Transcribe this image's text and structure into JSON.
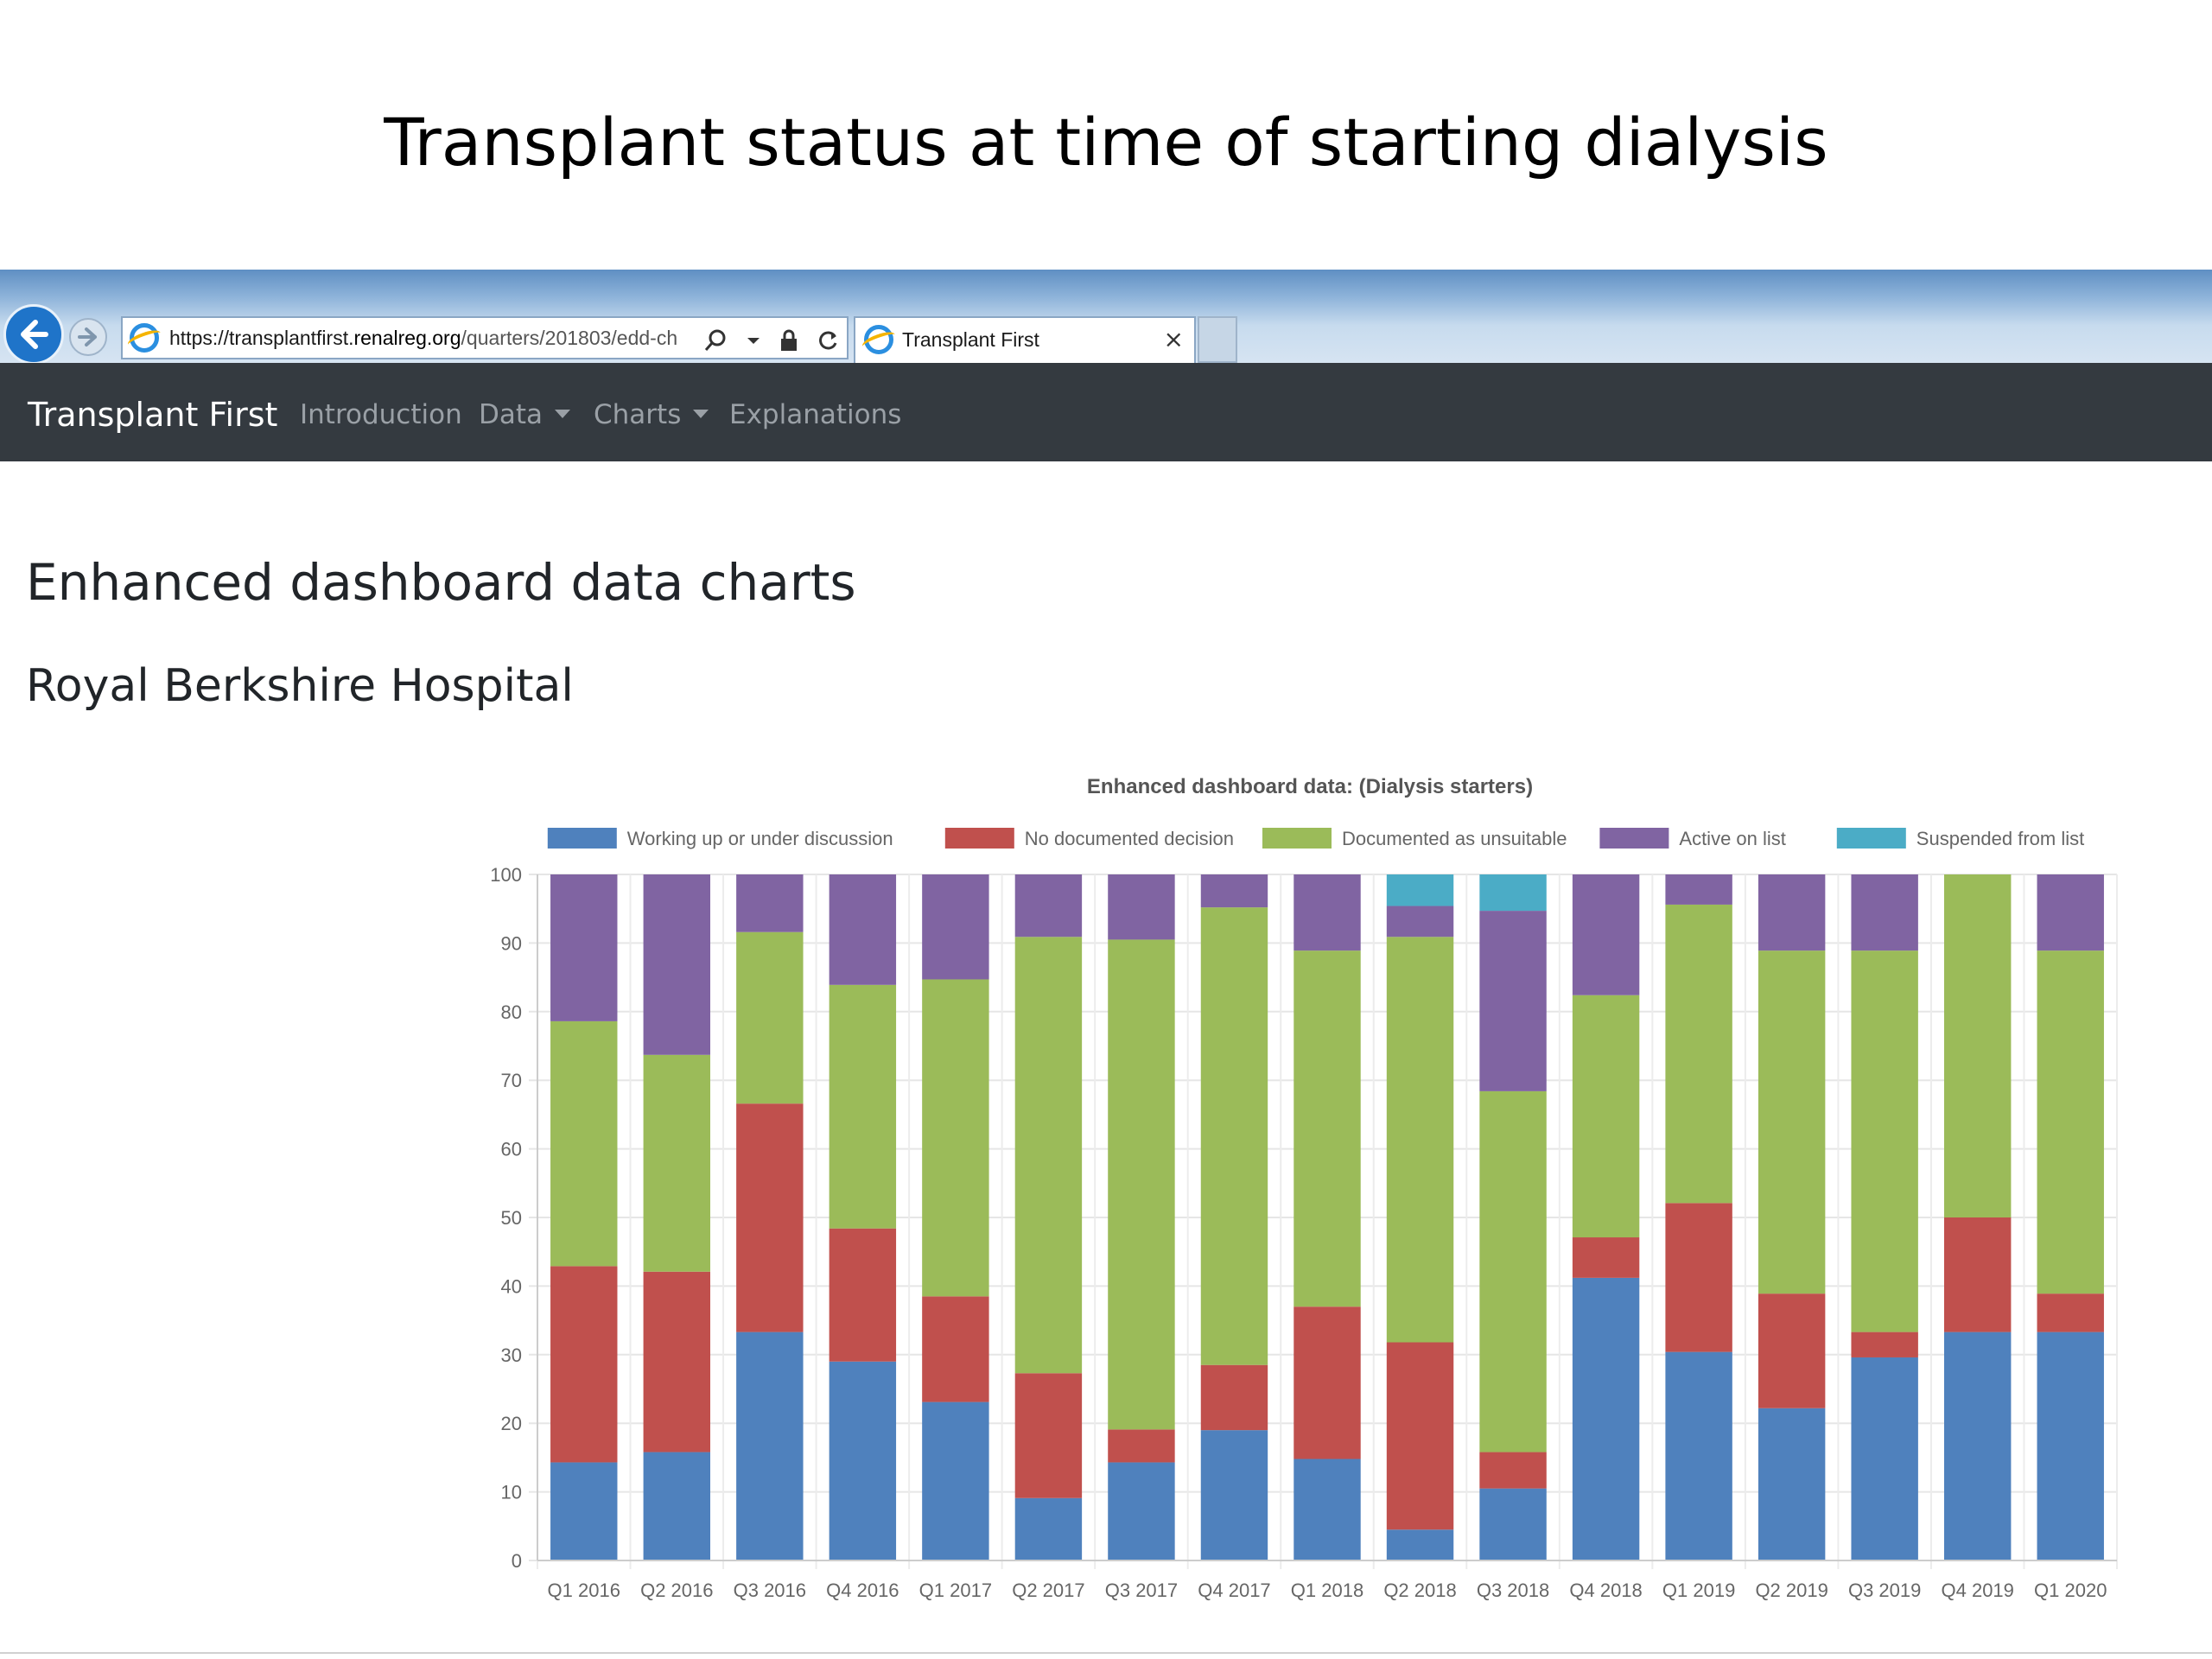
{
  "slide": {
    "title": "Transplant status at time of starting dialysis"
  },
  "browser": {
    "url_prefix": "https://transplantfirst.",
    "url_domain": "renalreg.org",
    "url_path": "/quarters/201803/edd-ch",
    "tab_title": "Transplant First",
    "tab_close": "×",
    "icons": [
      "back-arrow-icon",
      "forward-arrow-icon",
      "ie-icon",
      "search-icon",
      "lock-icon",
      "refresh-icon",
      "close-icon"
    ]
  },
  "navbar": {
    "brand": "Transplant First",
    "items": [
      {
        "label": "Introduction",
        "dropdown": false
      },
      {
        "label": "Data",
        "dropdown": true
      },
      {
        "label": "Charts",
        "dropdown": true
      },
      {
        "label": "Explanations",
        "dropdown": false
      }
    ]
  },
  "page": {
    "heading": "Enhanced dashboard data charts",
    "subheading": "Royal Berkshire Hospital"
  },
  "chart_data": {
    "type": "bar",
    "stacked": true,
    "title": "Enhanced dashboard data: (Dialysis starters)",
    "legend_position": "top",
    "grid": true,
    "ylim": [
      0,
      100
    ],
    "yticks": [
      0,
      10,
      20,
      30,
      40,
      50,
      60,
      70,
      80,
      90,
      100
    ],
    "categories": [
      "Q1 2016",
      "Q2 2016",
      "Q3 2016",
      "Q4 2016",
      "Q1 2017",
      "Q2 2017",
      "Q3 2017",
      "Q4 2017",
      "Q1 2018",
      "Q2 2018",
      "Q3 2018",
      "Q4 2018",
      "Q1 2019",
      "Q2 2019",
      "Q3 2019",
      "Q4 2019",
      "Q1 2020"
    ],
    "series": [
      {
        "name": "Working up or under discussion",
        "color": "#4f81bd",
        "values": [
          14.3,
          15.8,
          33.3,
          29.0,
          23.1,
          9.1,
          14.3,
          19.0,
          14.8,
          4.5,
          10.5,
          41.2,
          30.4,
          22.2,
          29.6,
          33.3,
          33.3
        ]
      },
      {
        "name": "No documented decision",
        "color": "#c0504d",
        "values": [
          28.6,
          26.3,
          33.3,
          19.4,
          15.4,
          18.2,
          4.8,
          9.5,
          22.2,
          27.3,
          5.3,
          5.9,
          21.7,
          16.7,
          3.7,
          16.7,
          5.6
        ]
      },
      {
        "name": "Documented as unsuitable",
        "color": "#9bbb59",
        "values": [
          35.7,
          31.6,
          25.0,
          35.5,
          46.2,
          63.6,
          71.4,
          66.7,
          51.9,
          59.1,
          52.6,
          35.3,
          43.5,
          50.0,
          55.6,
          50.0,
          50.0
        ]
      },
      {
        "name": "Active on list",
        "color": "#8064a2",
        "values": [
          21.4,
          26.3,
          8.4,
          16.1,
          15.3,
          9.1,
          9.5,
          4.8,
          11.1,
          4.5,
          26.3,
          17.6,
          4.4,
          11.1,
          11.1,
          0,
          11.1
        ]
      },
      {
        "name": "Suspended from list",
        "color": "#4bacc6",
        "values": [
          0,
          0,
          0,
          0,
          0,
          0,
          0,
          0,
          0,
          4.6,
          5.3,
          0,
          0,
          0,
          0,
          0,
          0
        ]
      }
    ]
  }
}
